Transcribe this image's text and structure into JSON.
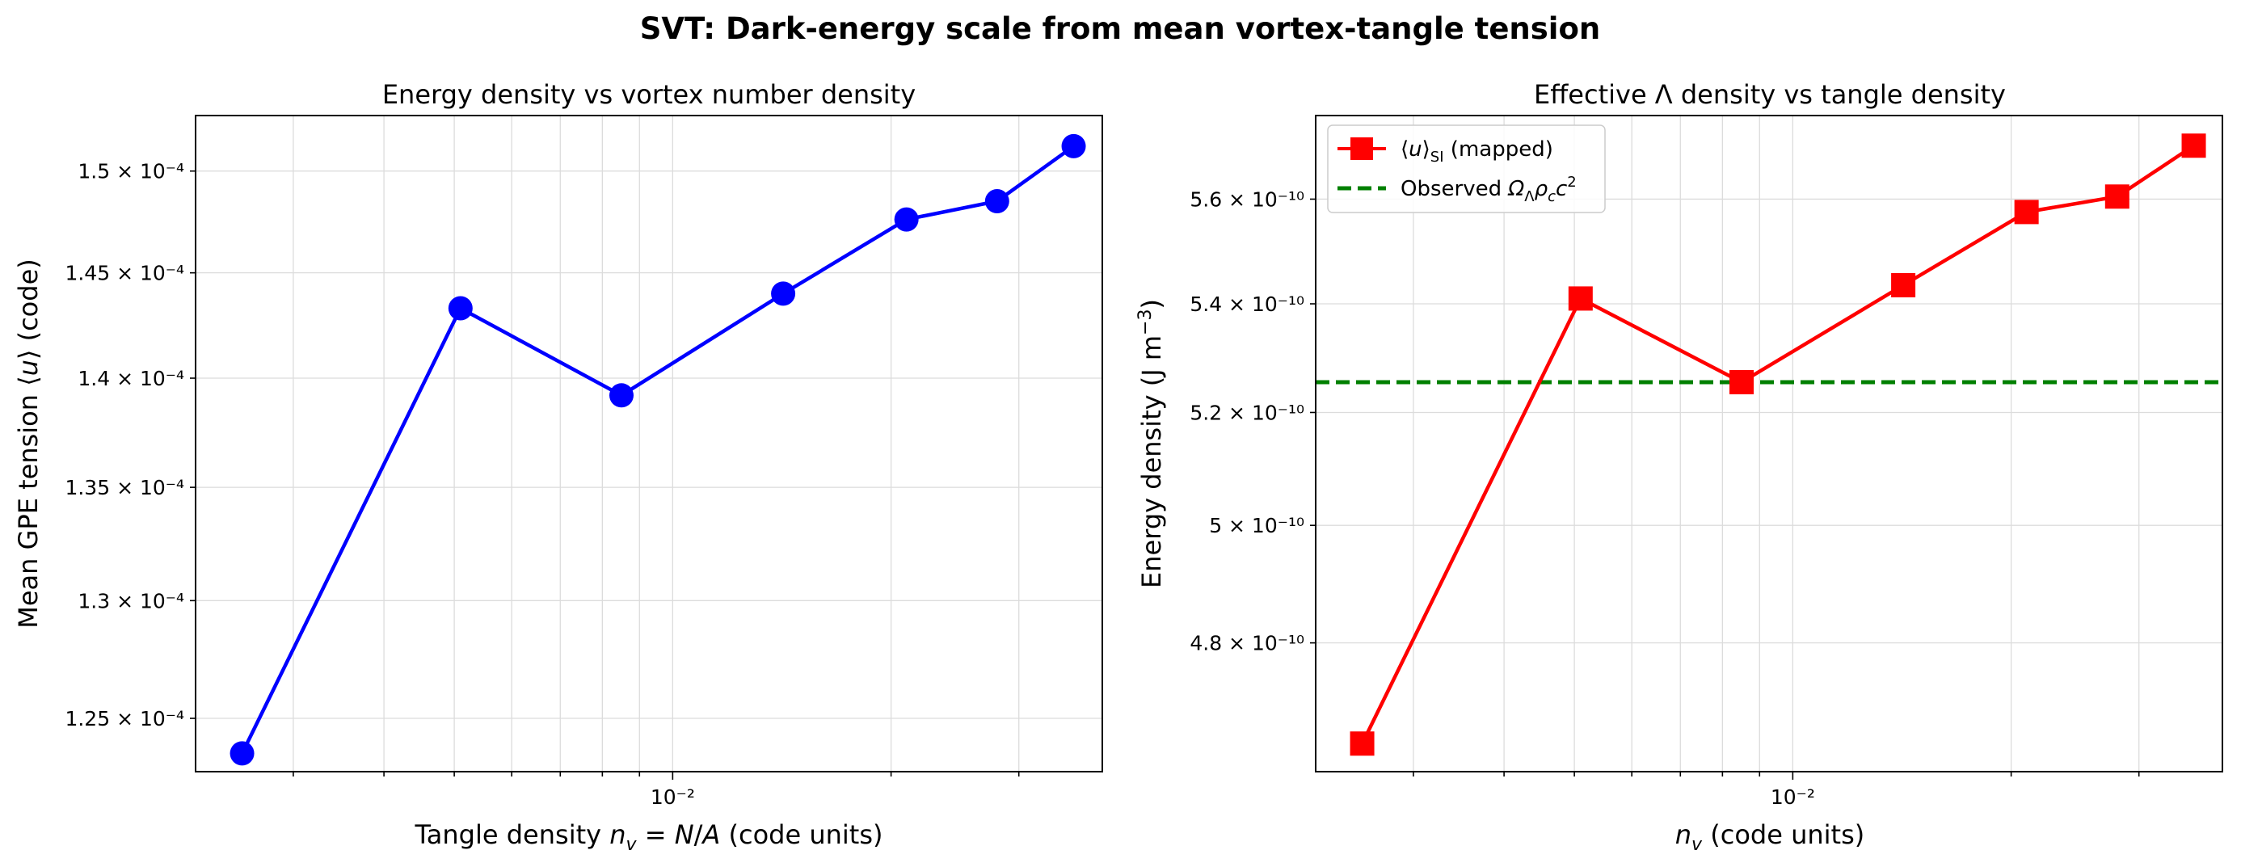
{
  "figure": {
    "title": "SVT:  Dark-energy scale from mean vortex-tangle tension"
  },
  "chart_data": [
    {
      "type": "line",
      "title": "Energy density vs vortex number density",
      "xlabel": "Tangle density  n_v = N/A  (code units)",
      "ylabel": "Mean GPE tension  ⟨u⟩  (code)",
      "xscale": "log",
      "yscale": "log",
      "xlim": [
        0.0022,
        0.0391
      ],
      "ylim": [
        0.0001228,
        0.0001528
      ],
      "xticks": [
        {
          "value": 0.01,
          "label": "10⁻²"
        }
      ],
      "yticks": [
        {
          "value": 0.000125,
          "label": "1.25 × 10⁻⁴"
        },
        {
          "value": 0.00013,
          "label": "1.3 × 10⁻⁴"
        },
        {
          "value": 0.000135,
          "label": "1.35 × 10⁻⁴"
        },
        {
          "value": 0.00014,
          "label": "1.4 × 10⁻⁴"
        },
        {
          "value": 0.000145,
          "label": "1.45 × 10⁻⁴"
        },
        {
          "value": 0.00015,
          "label": "1.5 × 10⁻⁴"
        }
      ],
      "grid": true,
      "series": [
        {
          "color": "#0000ff",
          "marker": "circle",
          "x": [
            0.00255,
            0.0051,
            0.0085,
            0.0142,
            0.021,
            0.028,
            0.0357
          ],
          "y": [
            0.00012355,
            0.0001433,
            0.0001392,
            0.000144,
            0.0001476,
            0.0001485,
            0.00015125
          ]
        }
      ]
    },
    {
      "type": "line",
      "title": "Effective Λ density vs tangle density",
      "xlabel": "n_v  (code units)",
      "ylabel": "Energy density  (J m⁻³)",
      "xscale": "log",
      "yscale": "log",
      "xlim": [
        0.0022,
        0.0391
      ],
      "ylim": [
        4.59e-10,
        5.765e-10
      ],
      "xticks": [
        {
          "value": 0.01,
          "label": "10⁻²"
        }
      ],
      "yticks": [
        {
          "value": 4.8e-10,
          "label": "4.8 × 10⁻¹⁰"
        },
        {
          "value": 5e-10,
          "label": "5 × 10⁻¹⁰"
        },
        {
          "value": 5.2e-10,
          "label": "5.2 × 10⁻¹⁰"
        },
        {
          "value": 5.4e-10,
          "label": "5.4 × 10⁻¹⁰"
        },
        {
          "value": 5.6e-10,
          "label": "5.6 × 10⁻¹⁰"
        }
      ],
      "grid": true,
      "legend_position": "top-left",
      "series": [
        {
          "name": "⟨u⟩SI  (mapped)",
          "color": "#ff0000",
          "marker": "square",
          "x": [
            0.00255,
            0.0051,
            0.0085,
            0.0142,
            0.021,
            0.028,
            0.0357
          ],
          "y": [
            4.635e-10,
            5.41e-10,
            5.255e-10,
            5.435e-10,
            5.575e-10,
            5.605e-10,
            5.705e-10
          ]
        }
      ],
      "hlines": [
        {
          "name": "Observed  ΩΛρcc²",
          "y": 5.255e-10,
          "color": "#008000",
          "style": "dashed"
        }
      ]
    }
  ]
}
